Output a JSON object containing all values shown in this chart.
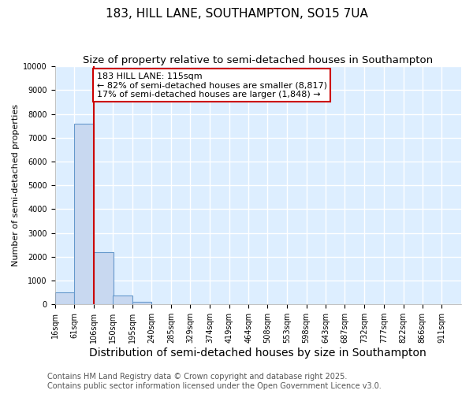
{
  "title1": "183, HILL LANE, SOUTHAMPTON, SO15 7UA",
  "title2": "Size of property relative to semi-detached houses in Southampton",
  "xlabel": "Distribution of semi-detached houses by size in Southampton",
  "ylabel": "Number of semi-detached properties",
  "footnote": "Contains HM Land Registry data © Crown copyright and database right 2025.\nContains public sector information licensed under the Open Government Licence v3.0.",
  "bin_edges": [
    16,
    61,
    106,
    150,
    195,
    240,
    285,
    329,
    374,
    419,
    464,
    508,
    553,
    598,
    643,
    687,
    732,
    777,
    822,
    866,
    911
  ],
  "bar_heights": [
    500,
    7600,
    2200,
    380,
    100,
    15,
    0,
    0,
    0,
    0,
    0,
    0,
    0,
    0,
    0,
    0,
    0,
    0,
    0,
    0
  ],
  "bar_color": "#c8d8f0",
  "bar_edgecolor": "#6699cc",
  "bar_linewidth": 0.8,
  "vline_x": 106,
  "vline_color": "#cc0000",
  "vline_linewidth": 1.5,
  "ylim": [
    0,
    10000
  ],
  "yticks": [
    0,
    1000,
    2000,
    3000,
    4000,
    5000,
    6000,
    7000,
    8000,
    9000,
    10000
  ],
  "annotation_text": "183 HILL LANE: 115sqm\n← 82% of semi-detached houses are smaller (8,817)\n17% of semi-detached houses are larger (1,848) →",
  "annotation_box_color": "#ffffff",
  "annotation_edgecolor": "#cc0000",
  "bg_color": "#ffffff",
  "plot_bg_color": "#ddeeff",
  "grid_color": "#ffffff",
  "title_fontsize": 11,
  "subtitle_fontsize": 9.5,
  "xlabel_fontsize": 10,
  "ylabel_fontsize": 8,
  "footnote_fontsize": 7,
  "tick_fontsize": 7,
  "annotation_fontsize": 8
}
